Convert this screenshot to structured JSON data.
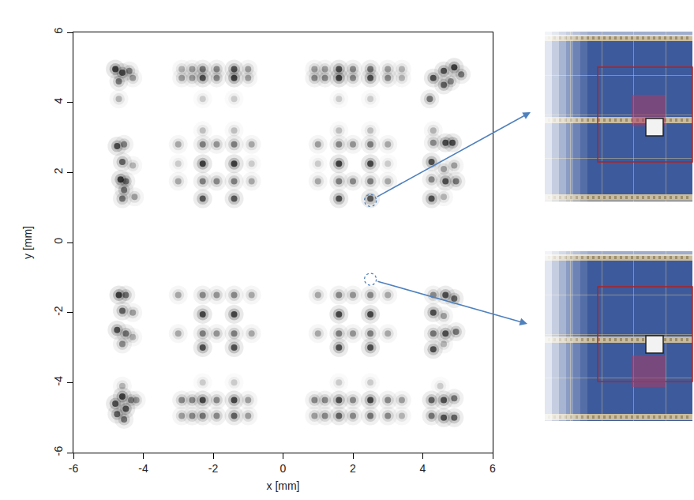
{
  "chart_data": {
    "type": "scatter",
    "x_label": "x [mm]",
    "y_label": "y [mm]",
    "xlim": [
      -6,
      6
    ],
    "ylim": [
      -6,
      6
    ],
    "xticks": [
      -6,
      -4,
      -2,
      0,
      2,
      4,
      6
    ],
    "yticks": [
      -6,
      -4,
      -2,
      0,
      2,
      4,
      6
    ],
    "grid": false,
    "color": "#000000",
    "marker": "circle",
    "highlighted": [
      {
        "x": 2.5,
        "y": 1.2
      },
      {
        "x": 2.5,
        "y": -1.05
      }
    ],
    "highlight_color": "#4f81bd",
    "points": [
      {
        "x": 0.9,
        "y": 4.95,
        "value": 0.4
      },
      {
        "x": 1.2,
        "y": 4.95,
        "value": 0.4
      },
      {
        "x": 1.6,
        "y": 4.95,
        "value": 0.8
      },
      {
        "x": 2.0,
        "y": 4.95,
        "value": 0.5
      },
      {
        "x": 2.5,
        "y": 4.95,
        "value": 0.6
      },
      {
        "x": 3.0,
        "y": 4.95,
        "value": 0.4
      },
      {
        "x": 3.4,
        "y": 4.95,
        "value": 0.3
      },
      {
        "x": 0.9,
        "y": 4.7,
        "value": 0.5
      },
      {
        "x": 1.2,
        "y": 4.7,
        "value": 0.5
      },
      {
        "x": 1.6,
        "y": 4.7,
        "value": 0.9
      },
      {
        "x": 2.0,
        "y": 4.7,
        "value": 0.5
      },
      {
        "x": 2.5,
        "y": 4.7,
        "value": 0.8
      },
      {
        "x": 3.0,
        "y": 4.7,
        "value": 0.5
      },
      {
        "x": 3.4,
        "y": 4.7,
        "value": 0.3
      },
      {
        "x": 1.6,
        "y": 4.1,
        "value": 0.2
      },
      {
        "x": 2.5,
        "y": 4.1,
        "value": 0.2
      },
      {
        "x": -2.9,
        "y": 4.95,
        "value": 0.3
      },
      {
        "x": -2.6,
        "y": 4.95,
        "value": 0.4
      },
      {
        "x": -2.3,
        "y": 4.95,
        "value": 0.6
      },
      {
        "x": -1.9,
        "y": 4.95,
        "value": 0.5
      },
      {
        "x": -1.4,
        "y": 4.95,
        "value": 0.8
      },
      {
        "x": -1.0,
        "y": 4.95,
        "value": 0.4
      },
      {
        "x": -2.9,
        "y": 4.7,
        "value": 0.4
      },
      {
        "x": -2.6,
        "y": 4.7,
        "value": 0.4
      },
      {
        "x": -2.3,
        "y": 4.7,
        "value": 0.8
      },
      {
        "x": -1.9,
        "y": 4.7,
        "value": 0.5
      },
      {
        "x": -1.4,
        "y": 4.7,
        "value": 0.9
      },
      {
        "x": -1.0,
        "y": 4.7,
        "value": 0.4
      },
      {
        "x": -2.3,
        "y": 4.1,
        "value": 0.2
      },
      {
        "x": -1.4,
        "y": 4.1,
        "value": 0.2
      },
      {
        "x": -4.8,
        "y": 4.95,
        "value": 0.9
      },
      {
        "x": -4.6,
        "y": 4.85,
        "value": 0.8
      },
      {
        "x": -4.4,
        "y": 4.9,
        "value": 0.5
      },
      {
        "x": -4.7,
        "y": 4.6,
        "value": 0.6
      },
      {
        "x": -4.3,
        "y": 4.7,
        "value": 0.4
      },
      {
        "x": -4.7,
        "y": 4.1,
        "value": 0.3
      },
      {
        "x": 4.3,
        "y": 4.7,
        "value": 0.8
      },
      {
        "x": 4.6,
        "y": 4.9,
        "value": 0.8
      },
      {
        "x": 4.9,
        "y": 5.0,
        "value": 0.9
      },
      {
        "x": 5.1,
        "y": 4.8,
        "value": 0.6
      },
      {
        "x": 4.6,
        "y": 4.5,
        "value": 0.7
      },
      {
        "x": 4.2,
        "y": 4.1,
        "value": 0.6
      },
      {
        "x": 4.8,
        "y": 4.6,
        "value": 0.5
      },
      {
        "x": 1.6,
        "y": 3.2,
        "value": 0.25
      },
      {
        "x": 2.5,
        "y": 3.2,
        "value": 0.25
      },
      {
        "x": 1.0,
        "y": 2.8,
        "value": 0.4
      },
      {
        "x": 1.6,
        "y": 2.8,
        "value": 0.5
      },
      {
        "x": 2.0,
        "y": 2.8,
        "value": 0.45
      },
      {
        "x": 2.5,
        "y": 2.8,
        "value": 0.55
      },
      {
        "x": 3.0,
        "y": 2.8,
        "value": 0.35
      },
      {
        "x": 1.0,
        "y": 2.25,
        "value": 0.2
      },
      {
        "x": 1.6,
        "y": 2.25,
        "value": 0.9
      },
      {
        "x": 2.5,
        "y": 2.25,
        "value": 0.85
      },
      {
        "x": 3.0,
        "y": 2.25,
        "value": 0.2
      },
      {
        "x": 1.0,
        "y": 1.75,
        "value": 0.35
      },
      {
        "x": 1.6,
        "y": 1.75,
        "value": 0.55
      },
      {
        "x": 2.0,
        "y": 1.75,
        "value": 0.5
      },
      {
        "x": 2.5,
        "y": 1.75,
        "value": 0.55
      },
      {
        "x": 3.0,
        "y": 1.75,
        "value": 0.35
      },
      {
        "x": 1.6,
        "y": 1.25,
        "value": 0.8
      },
      {
        "x": 2.5,
        "y": 1.25,
        "value": 0.75
      },
      {
        "x": -2.3,
        "y": 3.2,
        "value": 0.25
      },
      {
        "x": -1.4,
        "y": 3.2,
        "value": 0.25
      },
      {
        "x": -3.0,
        "y": 2.8,
        "value": 0.35
      },
      {
        "x": -2.3,
        "y": 2.8,
        "value": 0.55
      },
      {
        "x": -1.9,
        "y": 2.8,
        "value": 0.45
      },
      {
        "x": -1.4,
        "y": 2.8,
        "value": 0.55
      },
      {
        "x": -0.9,
        "y": 2.8,
        "value": 0.35
      },
      {
        "x": -3.0,
        "y": 2.25,
        "value": 0.2
      },
      {
        "x": -2.3,
        "y": 2.25,
        "value": 0.9
      },
      {
        "x": -1.4,
        "y": 2.25,
        "value": 0.9
      },
      {
        "x": -0.9,
        "y": 2.25,
        "value": 0.2
      },
      {
        "x": -3.0,
        "y": 1.75,
        "value": 0.35
      },
      {
        "x": -2.3,
        "y": 1.75,
        "value": 0.55
      },
      {
        "x": -1.9,
        "y": 1.75,
        "value": 0.5
      },
      {
        "x": -1.4,
        "y": 1.75,
        "value": 0.55
      },
      {
        "x": -0.9,
        "y": 1.75,
        "value": 0.35
      },
      {
        "x": -2.3,
        "y": 1.25,
        "value": 0.75
      },
      {
        "x": -1.4,
        "y": 1.25,
        "value": 0.75
      },
      {
        "x": -4.75,
        "y": 2.75,
        "value": 0.8
      },
      {
        "x": -4.55,
        "y": 2.8,
        "value": 0.5
      },
      {
        "x": -4.6,
        "y": 2.3,
        "value": 0.7
      },
      {
        "x": -4.65,
        "y": 1.8,
        "value": 0.9
      },
      {
        "x": -4.5,
        "y": 1.75,
        "value": 0.6
      },
      {
        "x": -4.55,
        "y": 1.5,
        "value": 0.6
      },
      {
        "x": -4.6,
        "y": 1.25,
        "value": 0.6
      },
      {
        "x": -4.25,
        "y": 1.3,
        "value": 0.4
      },
      {
        "x": -4.3,
        "y": 2.2,
        "value": 0.3
      },
      {
        "x": 4.3,
        "y": 3.2,
        "value": 0.3
      },
      {
        "x": 4.3,
        "y": 2.85,
        "value": 0.5
      },
      {
        "x": 4.65,
        "y": 2.85,
        "value": 0.8
      },
      {
        "x": 4.85,
        "y": 2.85,
        "value": 0.8
      },
      {
        "x": 4.25,
        "y": 2.3,
        "value": 0.8
      },
      {
        "x": 4.6,
        "y": 2.1,
        "value": 0.4
      },
      {
        "x": 4.9,
        "y": 2.2,
        "value": 0.4
      },
      {
        "x": 4.65,
        "y": 1.75,
        "value": 0.8
      },
      {
        "x": 4.95,
        "y": 1.75,
        "value": 0.6
      },
      {
        "x": 4.25,
        "y": 1.8,
        "value": 0.5
      },
      {
        "x": 4.25,
        "y": 1.25,
        "value": 0.8
      },
      {
        "x": 4.6,
        "y": 1.3,
        "value": 0.3
      },
      {
        "x": 1.0,
        "y": -1.5,
        "value": 0.35
      },
      {
        "x": 1.6,
        "y": -1.5,
        "value": 0.5
      },
      {
        "x": 2.0,
        "y": -1.5,
        "value": 0.45
      },
      {
        "x": 2.5,
        "y": -1.5,
        "value": 0.5
      },
      {
        "x": 3.0,
        "y": -1.5,
        "value": 0.35
      },
      {
        "x": 1.6,
        "y": -2.05,
        "value": 0.85
      },
      {
        "x": 2.5,
        "y": -2.05,
        "value": 0.85
      },
      {
        "x": 1.0,
        "y": -2.6,
        "value": 0.35
      },
      {
        "x": 1.6,
        "y": -2.6,
        "value": 0.55
      },
      {
        "x": 2.0,
        "y": -2.6,
        "value": 0.45
      },
      {
        "x": 2.5,
        "y": -2.6,
        "value": 0.55
      },
      {
        "x": 3.0,
        "y": -2.6,
        "value": 0.35
      },
      {
        "x": 1.6,
        "y": -3.0,
        "value": 0.8
      },
      {
        "x": 2.5,
        "y": -3.0,
        "value": 0.8
      },
      {
        "x": -3.0,
        "y": -1.5,
        "value": 0.35
      },
      {
        "x": -2.3,
        "y": -1.5,
        "value": 0.5
      },
      {
        "x": -1.9,
        "y": -1.5,
        "value": 0.45
      },
      {
        "x": -1.4,
        "y": -1.5,
        "value": 0.5
      },
      {
        "x": -0.9,
        "y": -1.5,
        "value": 0.35
      },
      {
        "x": -2.3,
        "y": -2.05,
        "value": 0.85
      },
      {
        "x": -1.4,
        "y": -2.05,
        "value": 0.85
      },
      {
        "x": -3.0,
        "y": -2.6,
        "value": 0.35
      },
      {
        "x": -2.3,
        "y": -2.6,
        "value": 0.55
      },
      {
        "x": -1.9,
        "y": -2.6,
        "value": 0.45
      },
      {
        "x": -1.4,
        "y": -2.6,
        "value": 0.55
      },
      {
        "x": -0.9,
        "y": -2.6,
        "value": 0.35
      },
      {
        "x": -2.3,
        "y": -3.0,
        "value": 0.8
      },
      {
        "x": -1.4,
        "y": -3.0,
        "value": 0.8
      },
      {
        "x": -4.7,
        "y": -1.5,
        "value": 0.9
      },
      {
        "x": -4.5,
        "y": -1.5,
        "value": 0.6
      },
      {
        "x": -4.6,
        "y": -1.95,
        "value": 0.7
      },
      {
        "x": -4.3,
        "y": -2.0,
        "value": 0.4
      },
      {
        "x": -4.75,
        "y": -2.5,
        "value": 0.8
      },
      {
        "x": -4.5,
        "y": -2.6,
        "value": 0.6
      },
      {
        "x": -4.6,
        "y": -2.9,
        "value": 0.5
      },
      {
        "x": -4.3,
        "y": -2.7,
        "value": 0.3
      },
      {
        "x": 4.3,
        "y": -1.5,
        "value": 0.5
      },
      {
        "x": 4.65,
        "y": -1.5,
        "value": 0.8
      },
      {
        "x": 4.9,
        "y": -1.6,
        "value": 0.7
      },
      {
        "x": 4.3,
        "y": -2.0,
        "value": 0.8
      },
      {
        "x": 4.6,
        "y": -2.1,
        "value": 0.4
      },
      {
        "x": 4.3,
        "y": -2.6,
        "value": 0.6
      },
      {
        "x": 4.65,
        "y": -2.6,
        "value": 0.8
      },
      {
        "x": 4.95,
        "y": -2.55,
        "value": 0.6
      },
      {
        "x": 4.3,
        "y": -3.05,
        "value": 0.8
      },
      {
        "x": 4.6,
        "y": -2.9,
        "value": 0.3
      },
      {
        "x": 1.6,
        "y": -4.0,
        "value": 0.2
      },
      {
        "x": 2.5,
        "y": -4.0,
        "value": 0.2
      },
      {
        "x": 0.9,
        "y": -4.5,
        "value": 0.5
      },
      {
        "x": 1.2,
        "y": -4.5,
        "value": 0.5
      },
      {
        "x": 1.6,
        "y": -4.5,
        "value": 0.8
      },
      {
        "x": 2.0,
        "y": -4.5,
        "value": 0.5
      },
      {
        "x": 2.5,
        "y": -4.5,
        "value": 0.85
      },
      {
        "x": 3.0,
        "y": -4.5,
        "value": 0.5
      },
      {
        "x": 3.4,
        "y": -4.5,
        "value": 0.4
      },
      {
        "x": 0.9,
        "y": -4.95,
        "value": 0.4
      },
      {
        "x": 1.2,
        "y": -4.95,
        "value": 0.5
      },
      {
        "x": 1.6,
        "y": -4.95,
        "value": 0.7
      },
      {
        "x": 2.0,
        "y": -4.95,
        "value": 0.5
      },
      {
        "x": 2.5,
        "y": -4.95,
        "value": 0.6
      },
      {
        "x": 3.0,
        "y": -4.95,
        "value": 0.5
      },
      {
        "x": 3.4,
        "y": -4.95,
        "value": 0.3
      },
      {
        "x": -2.3,
        "y": -4.0,
        "value": 0.2
      },
      {
        "x": -1.4,
        "y": -4.0,
        "value": 0.2
      },
      {
        "x": -2.9,
        "y": -4.5,
        "value": 0.5
      },
      {
        "x": -2.6,
        "y": -4.5,
        "value": 0.5
      },
      {
        "x": -2.3,
        "y": -4.5,
        "value": 0.85
      },
      {
        "x": -1.9,
        "y": -4.5,
        "value": 0.5
      },
      {
        "x": -1.4,
        "y": -4.5,
        "value": 0.85
      },
      {
        "x": -1.0,
        "y": -4.5,
        "value": 0.4
      },
      {
        "x": -2.9,
        "y": -4.95,
        "value": 0.4
      },
      {
        "x": -2.6,
        "y": -4.95,
        "value": 0.5
      },
      {
        "x": -2.3,
        "y": -4.95,
        "value": 0.6
      },
      {
        "x": -1.9,
        "y": -4.95,
        "value": 0.5
      },
      {
        "x": -1.4,
        "y": -4.95,
        "value": 0.7
      },
      {
        "x": -1.0,
        "y": -4.95,
        "value": 0.4
      },
      {
        "x": -4.8,
        "y": -4.6,
        "value": 0.8
      },
      {
        "x": -4.6,
        "y": -4.4,
        "value": 0.9
      },
      {
        "x": -4.5,
        "y": -4.75,
        "value": 0.8
      },
      {
        "x": -4.75,
        "y": -4.9,
        "value": 0.7
      },
      {
        "x": -4.35,
        "y": -4.5,
        "value": 0.5
      },
      {
        "x": -4.55,
        "y": -5.05,
        "value": 0.6
      },
      {
        "x": -4.2,
        "y": -4.5,
        "value": 0.4
      },
      {
        "x": -4.6,
        "y": -4.1,
        "value": 0.3
      },
      {
        "x": 4.25,
        "y": -4.5,
        "value": 0.7
      },
      {
        "x": 4.6,
        "y": -4.5,
        "value": 0.8
      },
      {
        "x": 4.9,
        "y": -4.45,
        "value": 0.6
      },
      {
        "x": 4.25,
        "y": -4.95,
        "value": 0.6
      },
      {
        "x": 4.6,
        "y": -5.0,
        "value": 0.8
      },
      {
        "x": 4.9,
        "y": -5.0,
        "value": 0.7
      },
      {
        "x": 4.5,
        "y": -4.1,
        "value": 0.2
      }
    ]
  }
}
